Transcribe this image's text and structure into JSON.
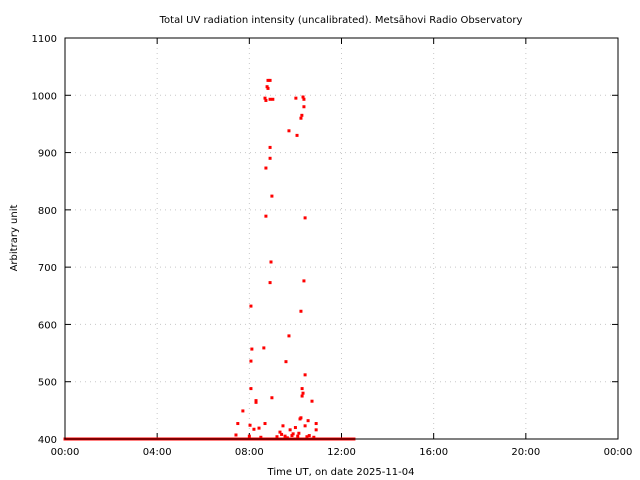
{
  "chart_data": {
    "type": "scatter",
    "title": "Total UV radiation intensity (uncalibrated). Metsāhovi Radio Observatory",
    "xlabel": "Time UT, on date 2025-11-04",
    "ylabel": "Arbitrary unit",
    "xlim": [
      0,
      24
    ],
    "ylim": [
      400,
      1100
    ],
    "x_unit": "hours UT",
    "xticks": [
      0,
      4,
      8,
      12,
      16,
      20,
      24
    ],
    "xtick_labels": [
      "00:00",
      "04:00",
      "08:00",
      "12:00",
      "16:00",
      "20:00",
      "00:00"
    ],
    "yticks": [
      400,
      500,
      600,
      700,
      800,
      900,
      1000,
      1100
    ],
    "ytick_labels": [
      "400",
      "500",
      "600",
      "700",
      "800",
      "900",
      "1000",
      "1100"
    ],
    "grid": true,
    "series": [
      {
        "name": "UV intensity",
        "color": "#ff0000",
        "baseline": {
          "value": 400,
          "from_hour": 0.0,
          "to_hour": 12.55,
          "step_hour": 0.02
        },
        "points": [
          [
            8.81,
            1026
          ],
          [
            8.9,
            1026
          ],
          [
            8.77,
            1015
          ],
          [
            8.81,
            1012
          ],
          [
            8.68,
            995
          ],
          [
            8.72,
            991
          ],
          [
            8.9,
            993
          ],
          [
            9.02,
            993
          ],
          [
            10.02,
            995
          ],
          [
            10.33,
            997
          ],
          [
            10.37,
            993
          ],
          [
            10.37,
            980
          ],
          [
            10.28,
            965
          ],
          [
            10.24,
            960
          ],
          [
            9.72,
            938
          ],
          [
            10.07,
            930
          ],
          [
            8.9,
            909
          ],
          [
            8.9,
            890
          ],
          [
            8.72,
            873
          ],
          [
            8.98,
            824
          ],
          [
            8.72,
            789
          ],
          [
            10.42,
            786
          ],
          [
            8.94,
            709
          ],
          [
            8.9,
            673
          ],
          [
            10.37,
            676
          ],
          [
            8.07,
            632
          ],
          [
            10.24,
            623
          ],
          [
            9.72,
            580
          ],
          [
            8.11,
            557
          ],
          [
            8.63,
            559
          ],
          [
            8.07,
            536
          ],
          [
            9.59,
            535
          ],
          [
            10.42,
            512
          ],
          [
            8.07,
            488
          ],
          [
            10.29,
            488
          ],
          [
            10.33,
            480
          ],
          [
            10.29,
            475
          ],
          [
            10.72,
            466
          ],
          [
            8.29,
            467
          ],
          [
            8.29,
            464
          ],
          [
            7.72,
            449
          ],
          [
            8.98,
            472
          ],
          [
            7.5,
            427
          ],
          [
            8.03,
            424
          ],
          [
            8.42,
            419
          ],
          [
            10.24,
            437
          ],
          [
            10.2,
            435
          ],
          [
            10.55,
            432
          ],
          [
            10.9,
            427
          ],
          [
            10.9,
            416
          ],
          [
            8.2,
            417
          ],
          [
            8.68,
            427
          ],
          [
            9.46,
            423
          ],
          [
            10.42,
            423
          ],
          [
            7.42,
            407
          ],
          [
            9.33,
            412
          ],
          [
            9.77,
            416
          ],
          [
            9.9,
            409
          ],
          [
            10.0,
            420
          ],
          [
            10.1,
            405
          ],
          [
            9.55,
            405
          ],
          [
            9.2,
            404
          ],
          [
            9.65,
            402
          ],
          [
            10.6,
            406
          ],
          [
            10.8,
            403
          ],
          [
            8.0,
            405
          ],
          [
            8.5,
            403
          ],
          [
            9.85,
            406
          ],
          [
            10.15,
            410
          ],
          [
            10.5,
            404
          ],
          [
            9.4,
            408
          ]
        ]
      }
    ]
  }
}
